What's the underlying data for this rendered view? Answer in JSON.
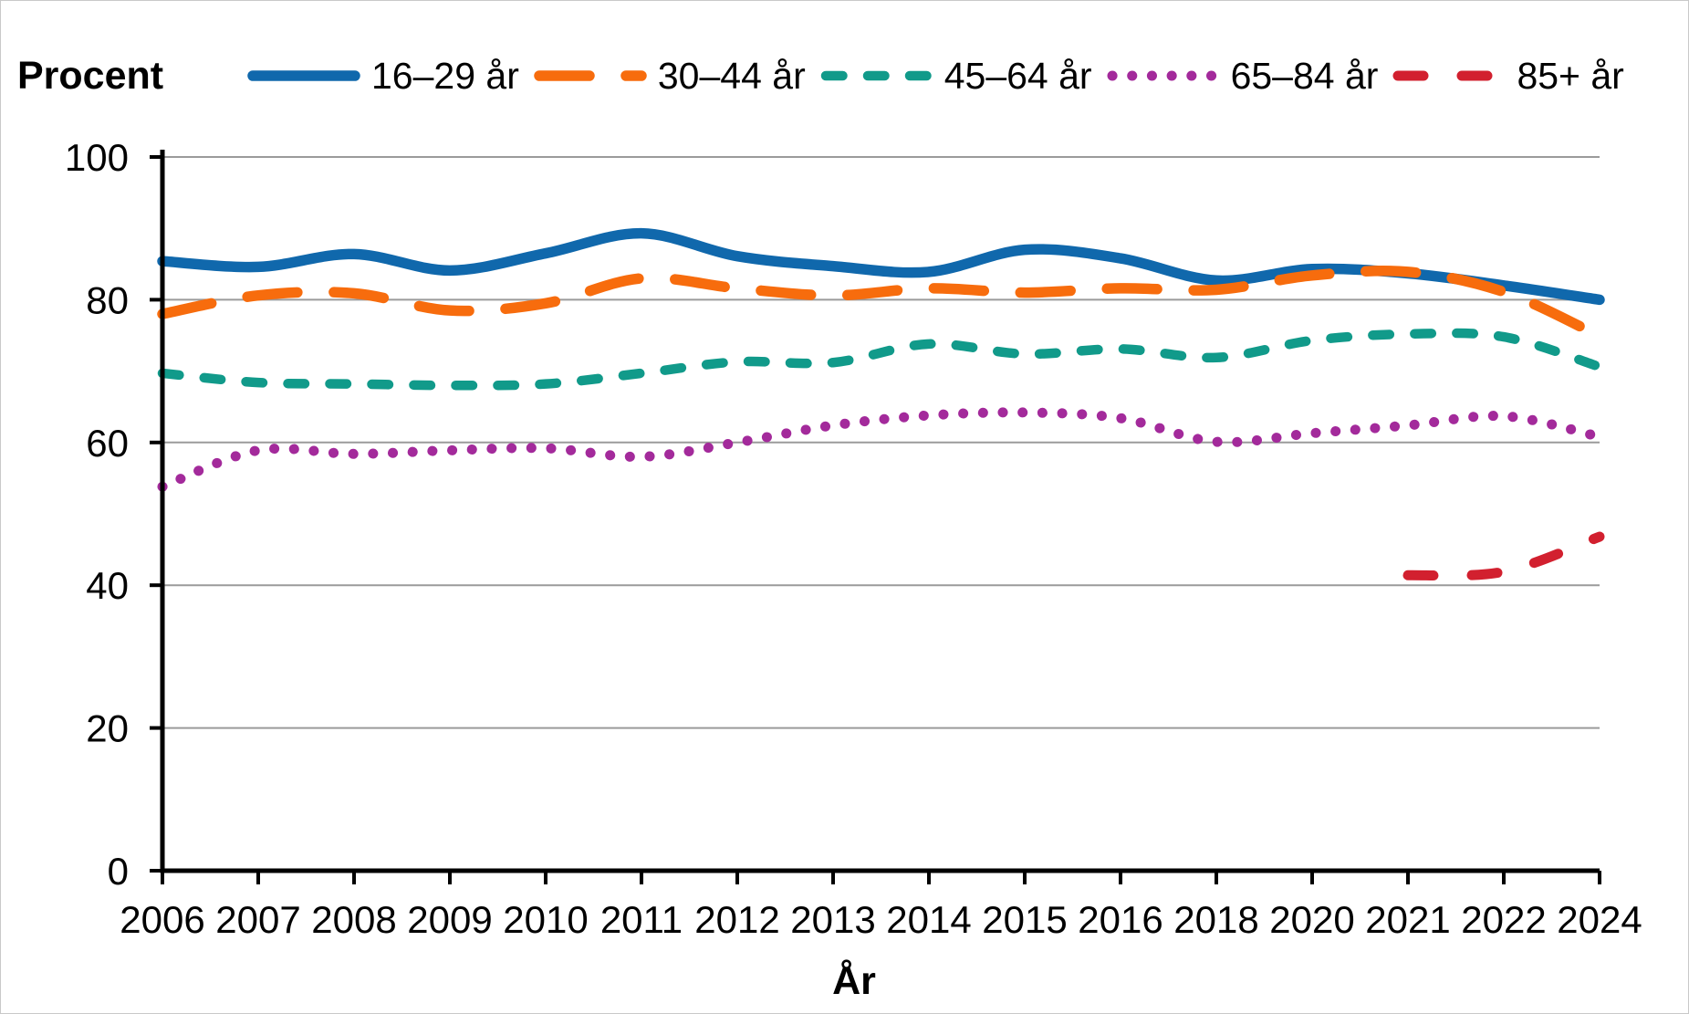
{
  "chart_data": {
    "type": "line",
    "title": "",
    "ylabel": "Procent",
    "xlabel": "År",
    "legend_position": "top",
    "grid": "horizontal",
    "ylim": [
      0,
      100
    ],
    "yticks": [
      0,
      20,
      40,
      60,
      80,
      100
    ],
    "categories": [
      "2006",
      "2007",
      "2008",
      "2009",
      "2010",
      "2011",
      "2012",
      "2013",
      "2014",
      "2015",
      "2016",
      "2018",
      "2020",
      "2021",
      "2022",
      "2024"
    ],
    "series": [
      {
        "name": "16–29 år",
        "color": "#1068ac",
        "style": "solid",
        "values": [
          85.4,
          84.6,
          86.4,
          84.1,
          86.5,
          89.3,
          86.1,
          84.7,
          83.9,
          87.0,
          85.8,
          82.7,
          84.3,
          83.7,
          82.0,
          80.0
        ]
      },
      {
        "name": "30–44 år",
        "color": "#f76c0d",
        "style": "dash-long",
        "values": [
          78.0,
          80.6,
          80.9,
          78.5,
          79.5,
          83.0,
          81.6,
          80.6,
          81.6,
          81.0,
          81.6,
          81.4,
          83.4,
          83.9,
          81.1,
          74.9
        ]
      },
      {
        "name": "45–64 år",
        "color": "#119a8a",
        "style": "dash-medium",
        "values": [
          69.7,
          68.4,
          68.2,
          68.0,
          68.2,
          69.7,
          71.3,
          71.2,
          73.8,
          72.4,
          73.1,
          71.9,
          74.3,
          75.2,
          74.8,
          70.6
        ]
      },
      {
        "name": "65–84 år",
        "color": "#a32a9b",
        "style": "dotted",
        "values": [
          53.8,
          58.9,
          58.4,
          58.9,
          59.2,
          58.0,
          60.0,
          62.4,
          63.8,
          64.2,
          63.4,
          60.1,
          61.3,
          62.4,
          63.7,
          60.8
        ]
      },
      {
        "name": "85+ år",
        "color": "#d2202f",
        "style": "dash-short",
        "values": [
          null,
          null,
          null,
          null,
          null,
          null,
          null,
          null,
          null,
          null,
          null,
          null,
          null,
          41.4,
          41.9,
          46.8
        ]
      }
    ]
  }
}
